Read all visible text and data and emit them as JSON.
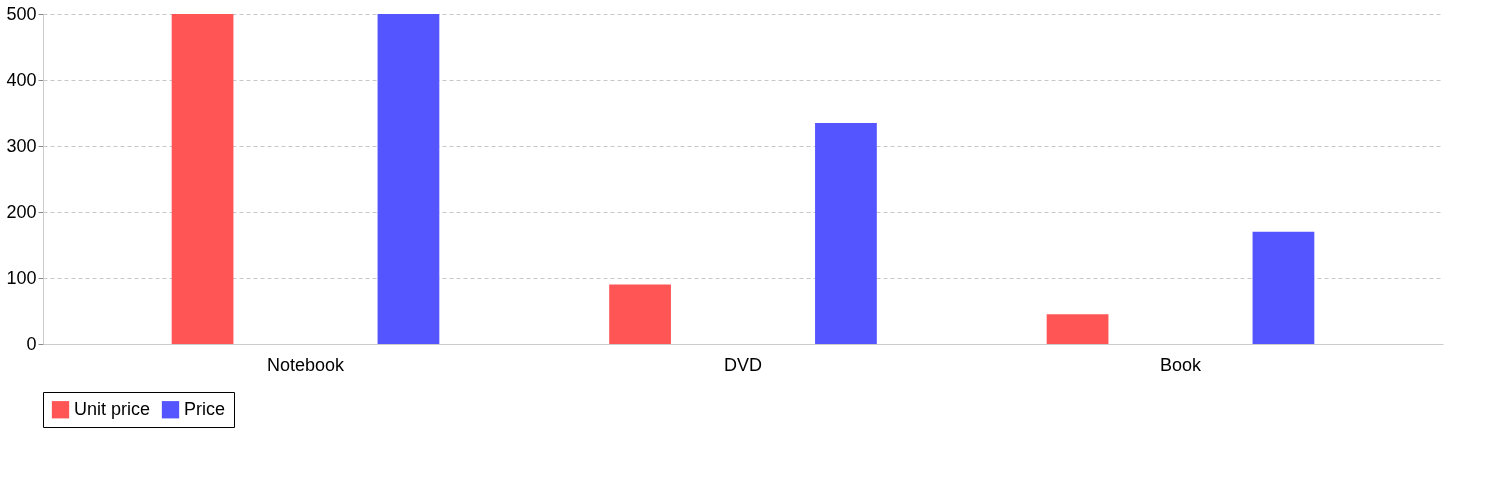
{
  "chart_data": {
    "type": "bar",
    "categories": [
      "Notebook",
      "DVD",
      "Book"
    ],
    "series": [
      {
        "name": "Unit price",
        "color": "#ff5555",
        "values": [
          500,
          90,
          45
        ]
      },
      {
        "name": "Price",
        "color": "#5555ff",
        "values": [
          500,
          335,
          170
        ]
      }
    ],
    "ylim": [
      0,
      500
    ],
    "yticks": [
      0,
      100,
      200,
      300,
      400,
      500
    ],
    "grid": "y",
    "legend": "bottom"
  }
}
